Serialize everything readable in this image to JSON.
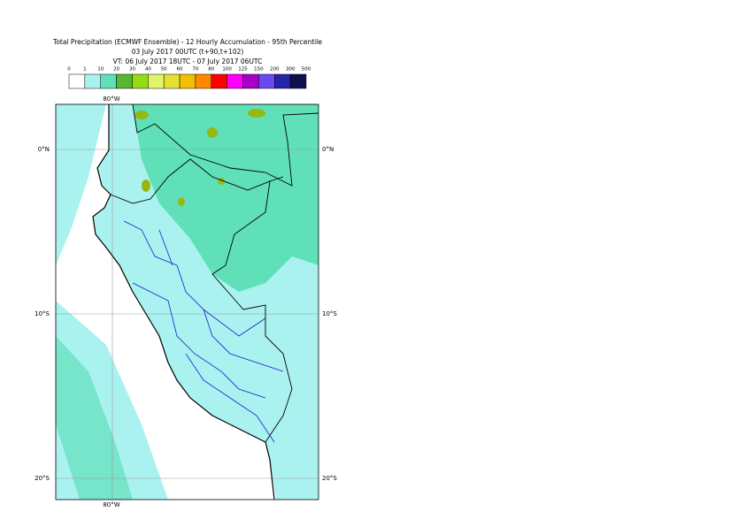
{
  "title": {
    "lines": [
      "Total Precipitation (ECMWF Ensemble) - 12 Hourly Accumulation - 95th Percentile",
      "03 July 2017 00UTC (t+90,t+102)",
      "VT: 06 July 2017 18UTC - 07 July 2017 06UTC"
    ]
  },
  "legend": {
    "ticks": [
      0,
      1,
      10,
      20,
      30,
      40,
      50,
      60,
      70,
      80,
      100,
      125,
      150,
      200,
      300,
      500
    ],
    "colors": [
      "#ffffff",
      "#aaf2f0",
      "#5fe0b8",
      "#55b82e",
      "#96dc14",
      "#e2f46a",
      "#e6e032",
      "#f2c000",
      "#ff8a00",
      "#ff0000",
      "#ff00ff",
      "#a800c8",
      "#6a4af0",
      "#2424a8",
      "#101050"
    ]
  },
  "map": {
    "lon_label": "80°W",
    "lat_labels": [
      "0°N",
      "10°S",
      "20°S"
    ]
  }
}
